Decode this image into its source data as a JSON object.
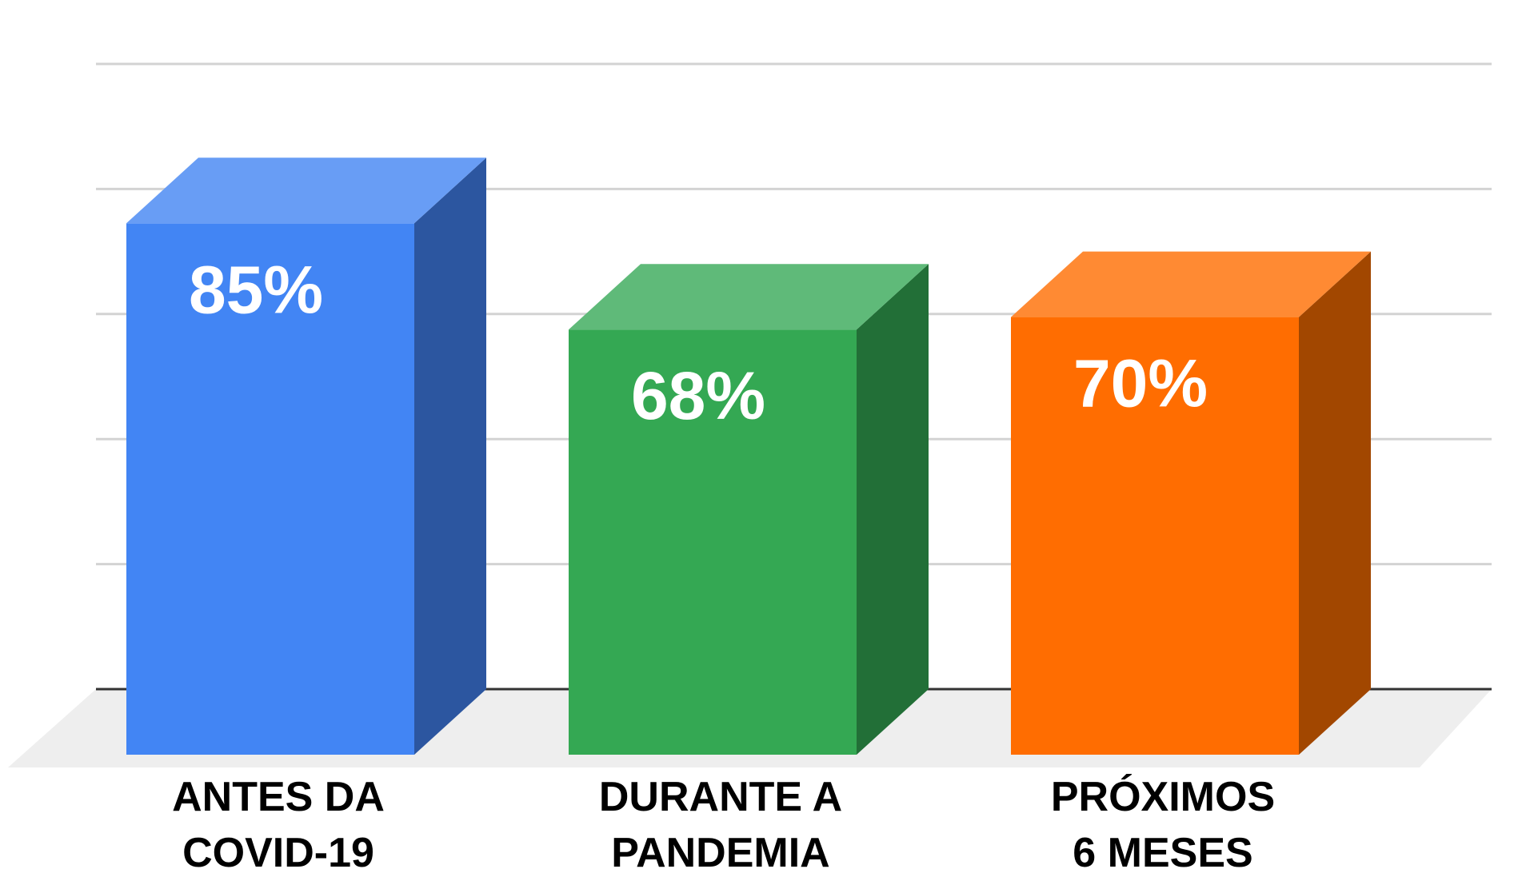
{
  "chart_data": {
    "type": "bar",
    "style": "3d",
    "categories": [
      [
        "ANTES DA",
        "COVID-19"
      ],
      [
        "DURANTE A",
        "PANDEMIA"
      ],
      [
        "PRÓXIMOS",
        "6 MESES"
      ]
    ],
    "values": [
      85,
      68,
      70
    ],
    "value_labels": [
      "85%",
      "68%",
      "70%"
    ],
    "ylim": [
      0,
      100
    ],
    "grid": true,
    "legend": "none",
    "colors": [
      {
        "front": "#4285f4",
        "side": "#2c56a0",
        "top": "#689df5"
      },
      {
        "front": "#34a853",
        "side": "#226f37",
        "top": "#5fba79"
      },
      {
        "front": "#ff6d01",
        "side": "#a24700",
        "top": "#ff8a33"
      }
    ]
  }
}
